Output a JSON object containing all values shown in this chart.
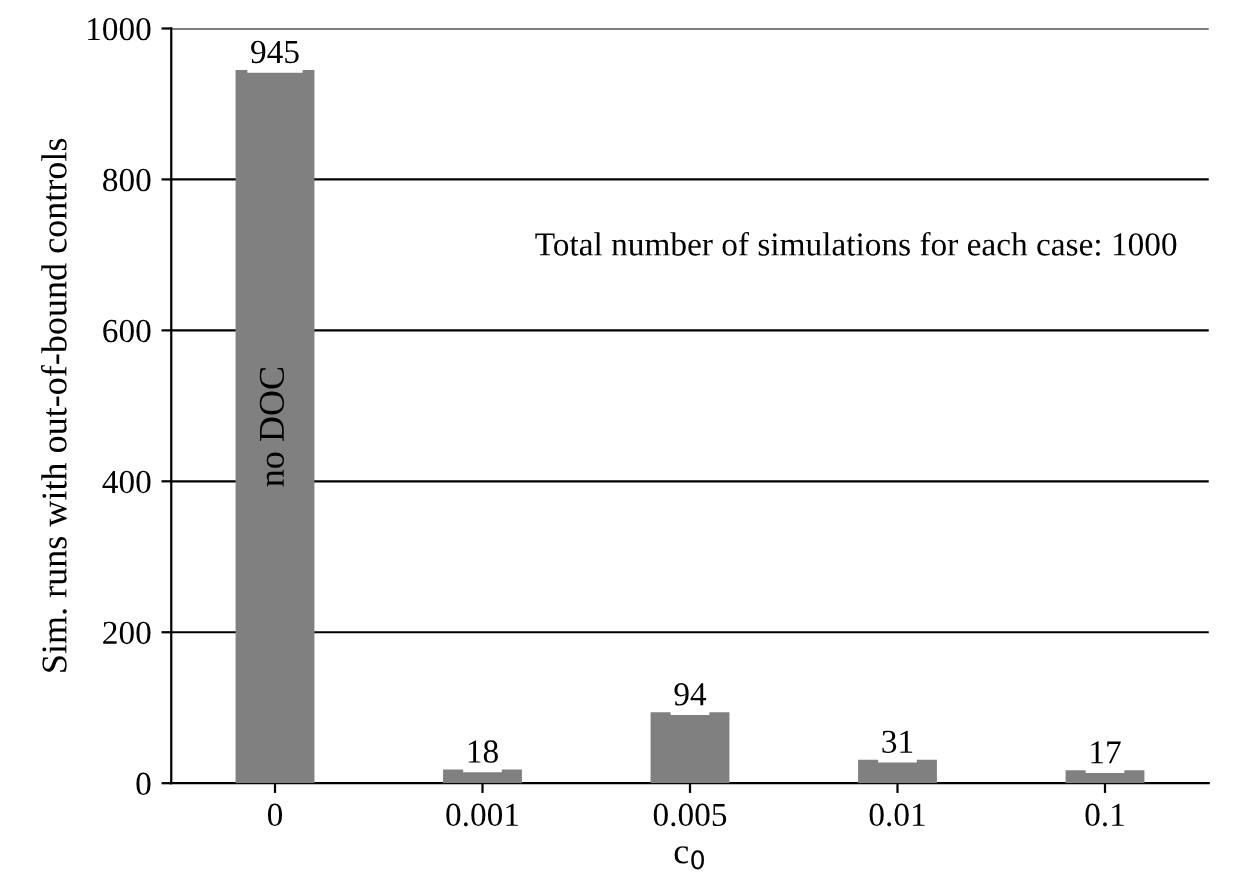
{
  "chart_data": {
    "type": "bar",
    "categories": [
      "0",
      "0.001",
      "0.005",
      "0.01",
      "0.1"
    ],
    "values": [
      945,
      18,
      94,
      31,
      17
    ],
    "color": "#808080",
    "xlabel": "c$_{0}$",
    "ylabel": "Sim. runs with out-of-bound controls",
    "ylim": [
      0,
      1000
    ],
    "yticks": [
      0,
      200,
      400,
      600,
      800,
      1000
    ],
    "grid": "y",
    "data_labels": true,
    "annotations": [
      "no DOC",
      "Total number of simulations for each case: 1000"
    ]
  }
}
